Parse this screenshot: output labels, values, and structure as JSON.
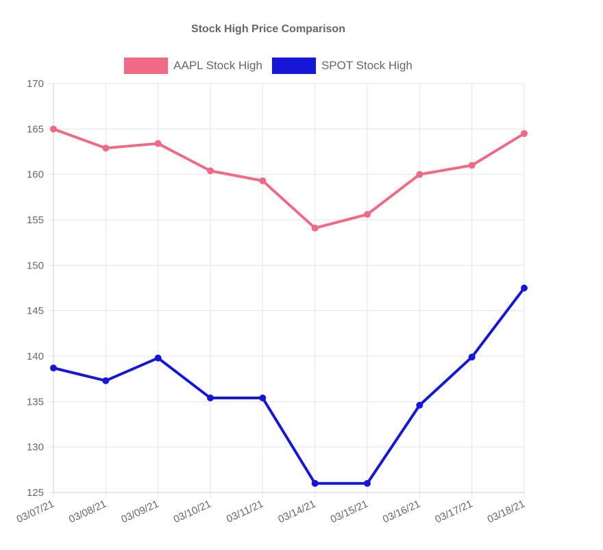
{
  "chart_data": {
    "type": "line",
    "title": "Stock High Price Comparison",
    "xlabel": "",
    "ylabel": "",
    "categories": [
      "03/07/21",
      "03/08/21",
      "03/09/21",
      "03/10/21",
      "03/11/21",
      "03/14/21",
      "03/15/21",
      "03/16/21",
      "03/17/21",
      "03/18/21"
    ],
    "ylim": [
      125,
      170
    ],
    "yticks": [
      125,
      130,
      135,
      140,
      145,
      150,
      155,
      160,
      165,
      170
    ],
    "grid": true,
    "legend_position": "top",
    "series": [
      {
        "name": "AAPL Stock High",
        "color": "#f06a86",
        "values": [
          165.0,
          162.9,
          163.4,
          160.4,
          159.3,
          154.1,
          155.6,
          160.0,
          161.0,
          164.5
        ]
      },
      {
        "name": "SPOT Stock High",
        "color": "#1616d8",
        "values": [
          138.7,
          137.3,
          139.8,
          135.4,
          135.4,
          126.0,
          126.0,
          134.6,
          139.9,
          147.5
        ]
      }
    ]
  }
}
